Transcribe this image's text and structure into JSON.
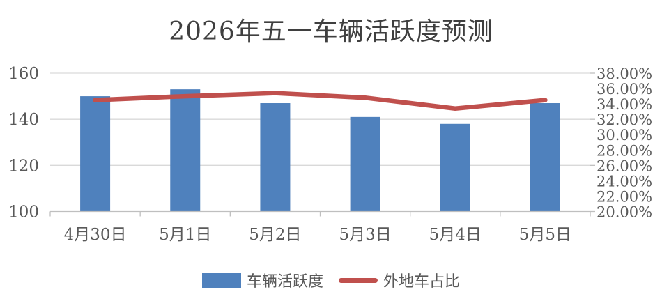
{
  "title": "2026年五一车辆活跃度预测",
  "chart_data": {
    "type": "bar+line combo",
    "title": "2026年五一车辆活跃度预测",
    "categories": [
      "4月30日",
      "5月1日",
      "5月2日",
      "5月3日",
      "5月4日",
      "5月5日"
    ],
    "series": [
      {
        "name": "车辆活跃度",
        "type": "bar",
        "axis": "left",
        "color": "#4F81BD",
        "values": [
          150,
          153,
          147,
          141,
          138,
          147
        ]
      },
      {
        "name": "外地车占比",
        "type": "line",
        "axis": "right",
        "color": "#C0504D",
        "values": [
          34.5,
          35.0,
          35.4,
          34.8,
          33.4,
          34.5
        ]
      }
    ],
    "left_axis": {
      "min": 100,
      "max": 160,
      "step": 20,
      "tick_labels": [
        "160",
        "140",
        "120",
        "100"
      ]
    },
    "right_axis": {
      "min": 20,
      "max": 38,
      "step": 2,
      "tick_labels": [
        "38.00%",
        "36.00%",
        "34.00%",
        "32.00%",
        "30.00%",
        "28.00%",
        "26.00%",
        "24.00%",
        "22.00%",
        "20.00%"
      ]
    },
    "grid": true,
    "legend_position": "bottom"
  },
  "colors": {
    "bar": "#4F81BD",
    "line": "#C0504D",
    "gridline": "#D9D9D9",
    "axis_line": "#BFBFBF",
    "axis_text": "#595959",
    "title_text": "#3F3F3F"
  }
}
